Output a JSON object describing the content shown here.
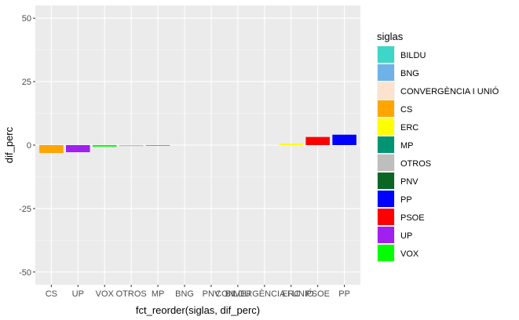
{
  "chart_data": {
    "type": "bar",
    "xlabel": "fct_reorder(siglas, dif_perc)",
    "ylabel": "dif_perc",
    "ylim": [
      -55,
      55
    ],
    "yticks": [
      -50,
      -25,
      0,
      25,
      50
    ],
    "categories": [
      "CS",
      "UP",
      "VOX",
      "OTROS",
      "MP",
      "BNG",
      "PNV",
      "BILDU",
      "CONVERGÈNCIA I UNIÓ",
      "ERC",
      "PSOE",
      "PP"
    ],
    "values": [
      -3.1,
      -2.8,
      -0.6,
      -0.4,
      -0.2,
      0.0,
      0.0,
      0.0,
      0.0,
      0.6,
      3.2,
      4.1
    ],
    "grid": true,
    "legend": {
      "title": "siglas",
      "placement": "right",
      "entries": [
        {
          "label": "BILDU",
          "color": "#3DD6C8"
        },
        {
          "label": "BNG",
          "color": "#6FB2E8"
        },
        {
          "label": "CONVERGÈNCIA I UNIÓ",
          "color": "#FDE3CE"
        },
        {
          "label": "CS",
          "color": "#FFA500"
        },
        {
          "label": "ERC",
          "color": "#FFFF00"
        },
        {
          "label": "MP",
          "color": "#009473"
        },
        {
          "label": "OTROS",
          "color": "#BEBEBE"
        },
        {
          "label": "PNV",
          "color": "#0B6623"
        },
        {
          "label": "PP",
          "color": "#0000FF"
        },
        {
          "label": "PSOE",
          "color": "#FF0000"
        },
        {
          "label": "UP",
          "color": "#A020F0"
        },
        {
          "label": "VOX",
          "color": "#00FF00"
        }
      ]
    }
  }
}
